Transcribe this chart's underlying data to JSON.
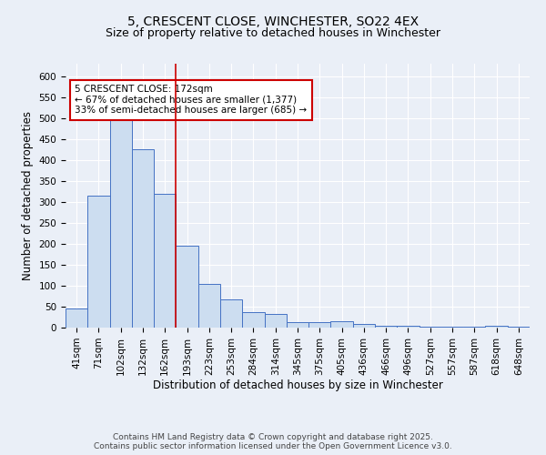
{
  "title1": "5, CRESCENT CLOSE, WINCHESTER, SO22 4EX",
  "title2": "Size of property relative to detached houses in Winchester",
  "xlabel": "Distribution of detached houses by size in Winchester",
  "ylabel": "Number of detached properties",
  "categories": [
    "41sqm",
    "71sqm",
    "102sqm",
    "132sqm",
    "162sqm",
    "193sqm",
    "223sqm",
    "253sqm",
    "284sqm",
    "314sqm",
    "345sqm",
    "375sqm",
    "405sqm",
    "436sqm",
    "466sqm",
    "496sqm",
    "527sqm",
    "557sqm",
    "587sqm",
    "618sqm",
    "648sqm"
  ],
  "values": [
    45,
    315,
    500,
    425,
    320,
    196,
    105,
    68,
    37,
    33,
    14,
    14,
    15,
    9,
    5,
    5,
    2,
    3,
    2,
    5,
    3
  ],
  "bar_color": "#ccddf0",
  "bar_edge_color": "#4472c4",
  "red_line_x": 4.5,
  "annotation_text": "5 CRESCENT CLOSE: 172sqm\n← 67% of detached houses are smaller (1,377)\n33% of semi-detached houses are larger (685) →",
  "annotation_box_color": "#ffffff",
  "annotation_box_edge": "#cc0000",
  "ylim": [
    0,
    630
  ],
  "yticks": [
    0,
    50,
    100,
    150,
    200,
    250,
    300,
    350,
    400,
    450,
    500,
    550,
    600
  ],
  "footnote1": "Contains HM Land Registry data © Crown copyright and database right 2025.",
  "footnote2": "Contains public sector information licensed under the Open Government Licence v3.0.",
  "bg_color": "#eaeff7",
  "plot_bg_color": "#eaeff7",
  "grid_color": "#ffffff",
  "title1_fontsize": 10,
  "title2_fontsize": 9,
  "axis_label_fontsize": 8.5,
  "tick_fontsize": 7.5,
  "annotation_fontsize": 7.5,
  "footnote_fontsize": 6.5
}
